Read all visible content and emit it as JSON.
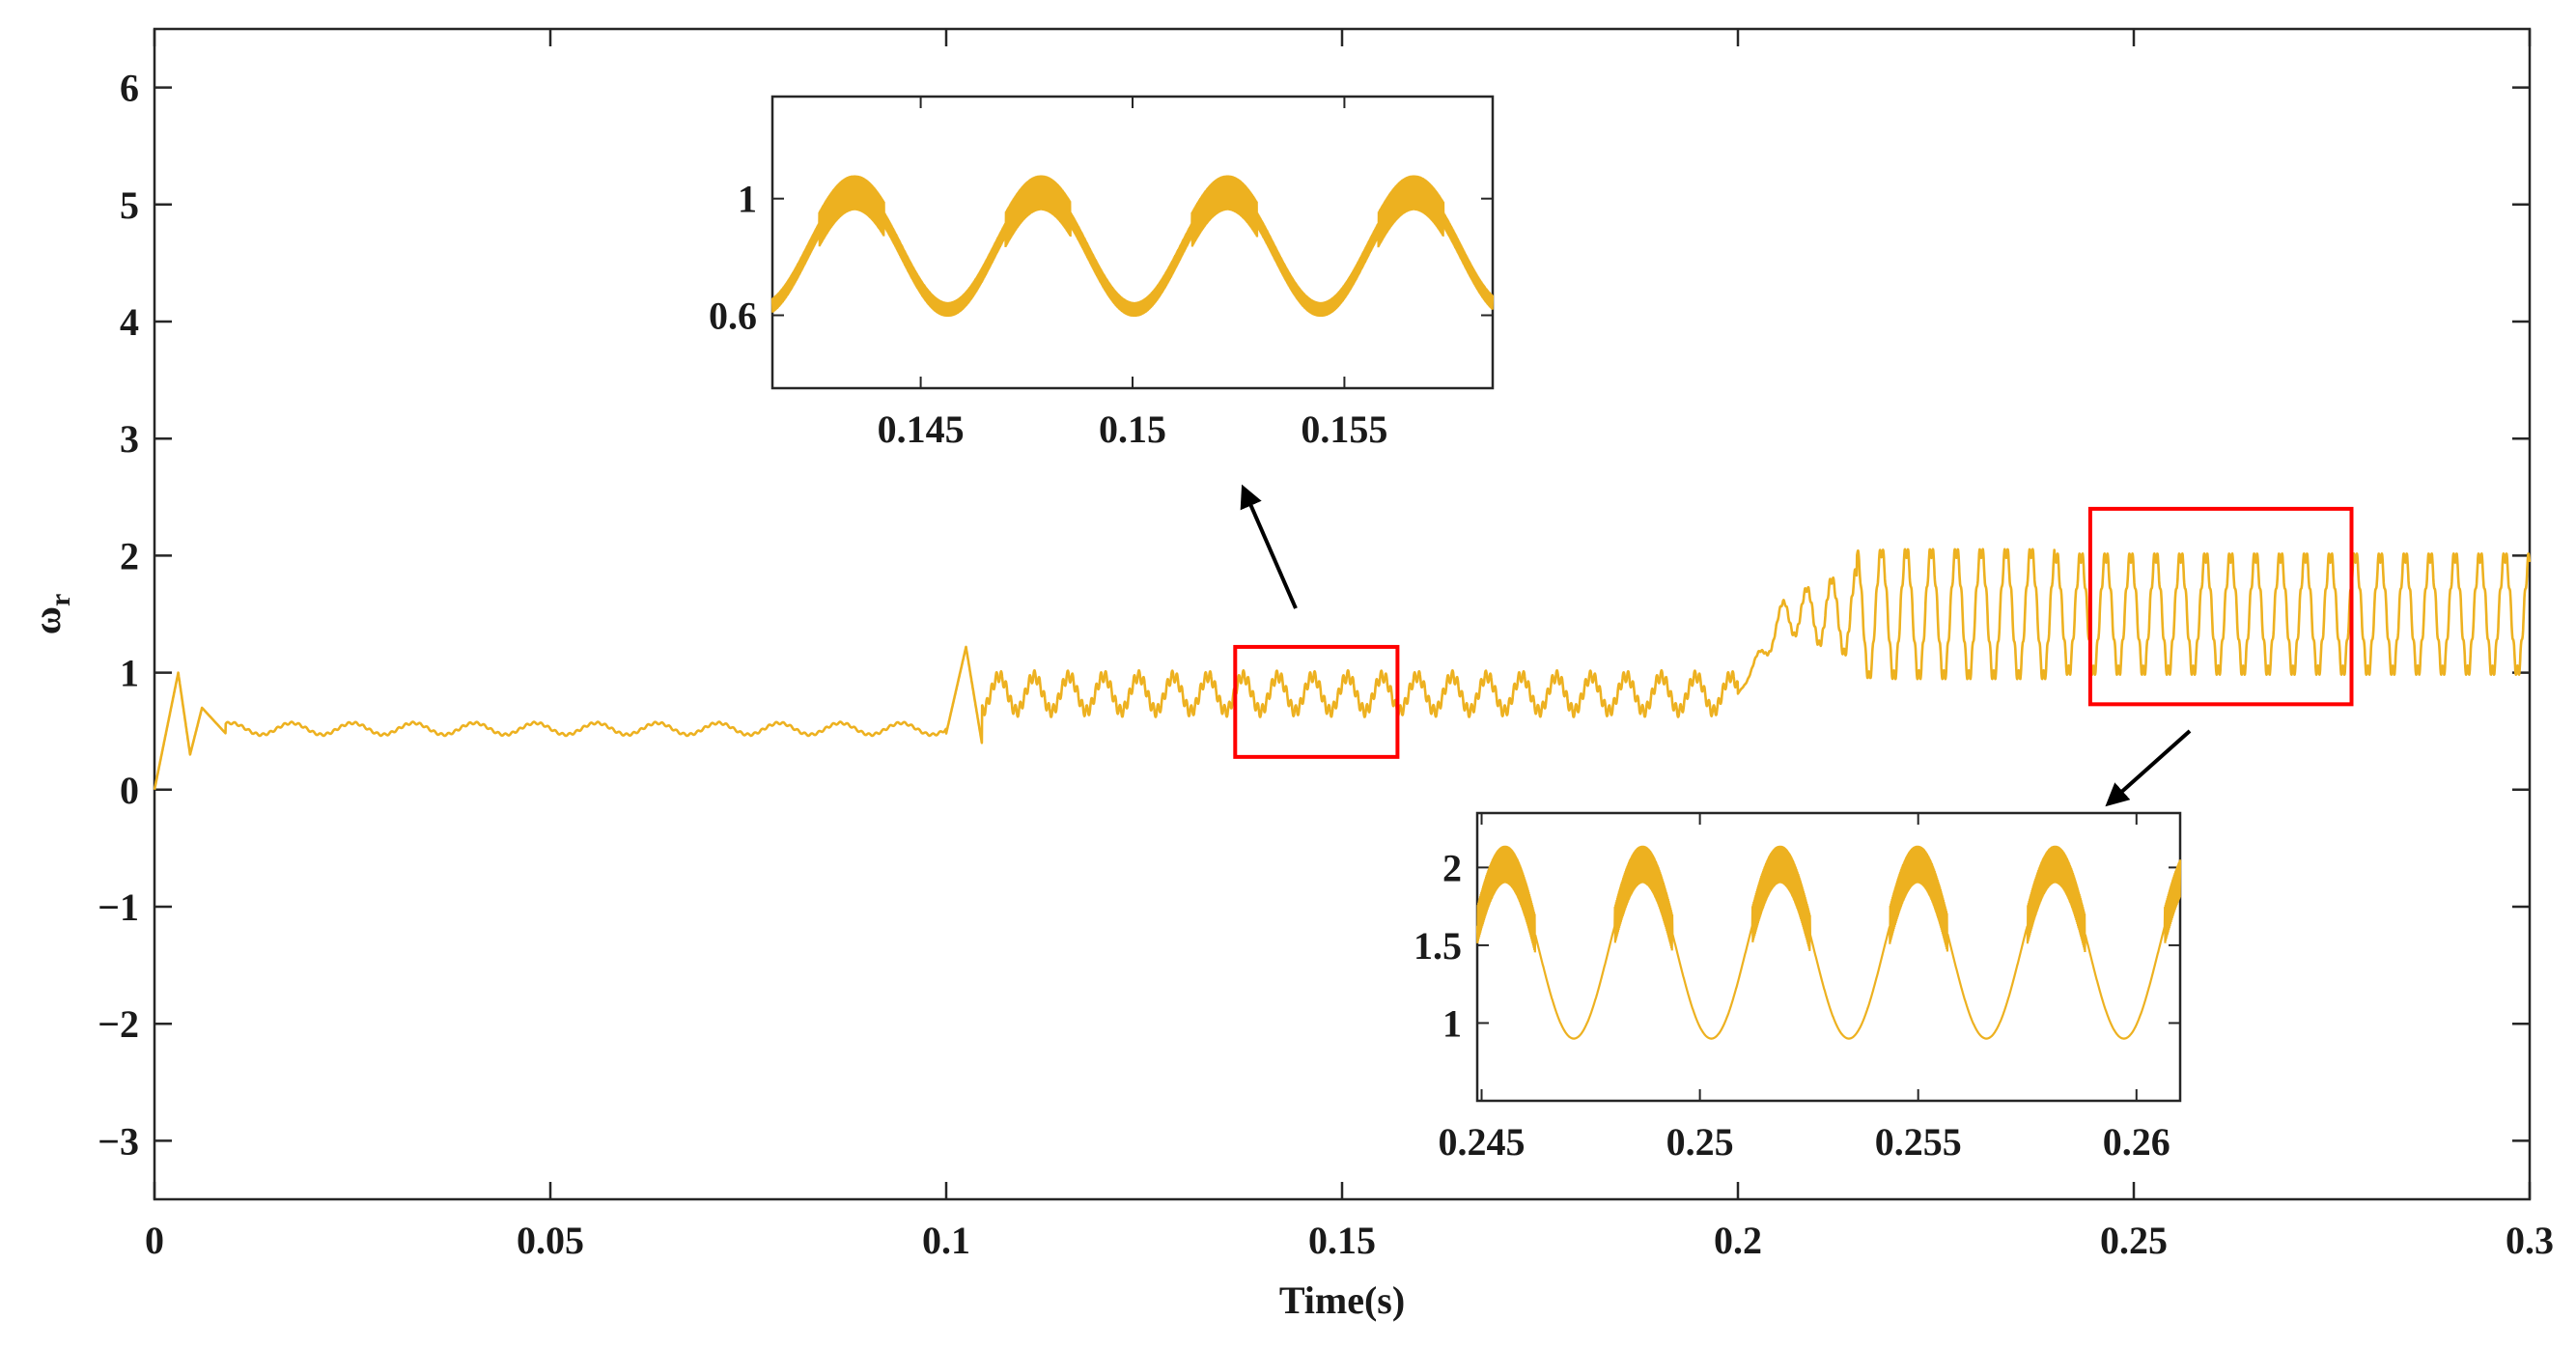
{
  "chart_data": [
    {
      "type": "line",
      "name": "main",
      "title": "",
      "xlabel": "Time(s)",
      "ylabel": "ω",
      "ylabel_sub": "r",
      "xlim": [
        0,
        0.3
      ],
      "ylim": [
        -3.5,
        6.5
      ],
      "xticks": [
        0,
        0.05,
        0.1,
        0.15,
        0.2,
        0.25,
        0.3
      ],
      "xtick_labels": [
        "0",
        "0.05",
        "0.1",
        "0.15",
        "0.2",
        "0.25",
        "0.3"
      ],
      "yticks": [
        -3,
        -2,
        -1,
        0,
        1,
        2,
        3,
        4,
        5,
        6
      ],
      "ytick_labels": [
        "−3",
        "−2",
        "−1",
        "0",
        "1",
        "2",
        "3",
        "4",
        "5",
        "6"
      ],
      "line_color": "#EDB120",
      "series": [
        {
          "name": "ω_r",
          "segments": [
            {
              "t_start": 0.0,
              "t_end": 0.1,
              "mean": 0.52,
              "amplitude": 0.05,
              "description": "startup transient peak ~1.0 near t=0.003, then steady ~0.5"
            },
            {
              "t_start": 0.1,
              "t_end": 0.2,
              "mean": 0.82,
              "amplitude": 0.15,
              "description": "step at t=0.1 with peak ~1.2, steady ~0.8"
            },
            {
              "t_start": 0.2,
              "t_end": 0.3,
              "mean": 1.5,
              "amplitude": 0.5,
              "description": "step at t=0.2, oscillation between ~1.0 and ~2.0"
            }
          ],
          "keypoints": [
            {
              "x": 0.0,
              "y": 0.0
            },
            {
              "x": 0.003,
              "y": 1.0
            },
            {
              "x": 0.004,
              "y": 0.3
            },
            {
              "x": 0.1,
              "y": 0.48
            },
            {
              "x": 0.102,
              "y": 1.22
            },
            {
              "x": 0.2,
              "y": 0.82
            },
            {
              "x": 0.225,
              "y": 2.05
            },
            {
              "x": 0.3,
              "y": 1.5
            }
          ]
        }
      ],
      "zoom_boxes": [
        {
          "x_range": [
            0.1365,
            0.157
          ],
          "y_range": [
            0.28,
            1.22
          ],
          "color": "#ff0000"
        },
        {
          "x_range": [
            0.2445,
            0.2775
          ],
          "y_range": [
            0.73,
            2.4
          ],
          "color": "#ff0000"
        }
      ]
    },
    {
      "type": "line",
      "name": "inset-1",
      "xlim": [
        0.1415,
        0.1585
      ],
      "ylim": [
        0.35,
        1.35
      ],
      "xticks": [
        0.145,
        0.15,
        0.155
      ],
      "xtick_labels": [
        "0.145",
        "0.15",
        "0.155"
      ],
      "yticks": [
        0.6,
        1
      ],
      "ytick_labels": [
        "0.6",
        "1"
      ],
      "period": 0.0044,
      "range_y": [
        0.62,
        1.02
      ]
    },
    {
      "type": "line",
      "name": "inset-2",
      "xlim": [
        0.2449,
        0.261
      ],
      "ylim": [
        0.5,
        2.35
      ],
      "xticks": [
        0.245,
        0.25,
        0.255,
        0.26
      ],
      "xtick_labels": [
        "0.245",
        "0.25",
        "0.255",
        "0.26"
      ],
      "yticks": [
        1,
        1.5,
        2
      ],
      "ytick_labels": [
        "1",
        "1.5",
        "2"
      ],
      "period": 0.00315,
      "range_y": [
        0.9,
        2.02
      ]
    }
  ]
}
